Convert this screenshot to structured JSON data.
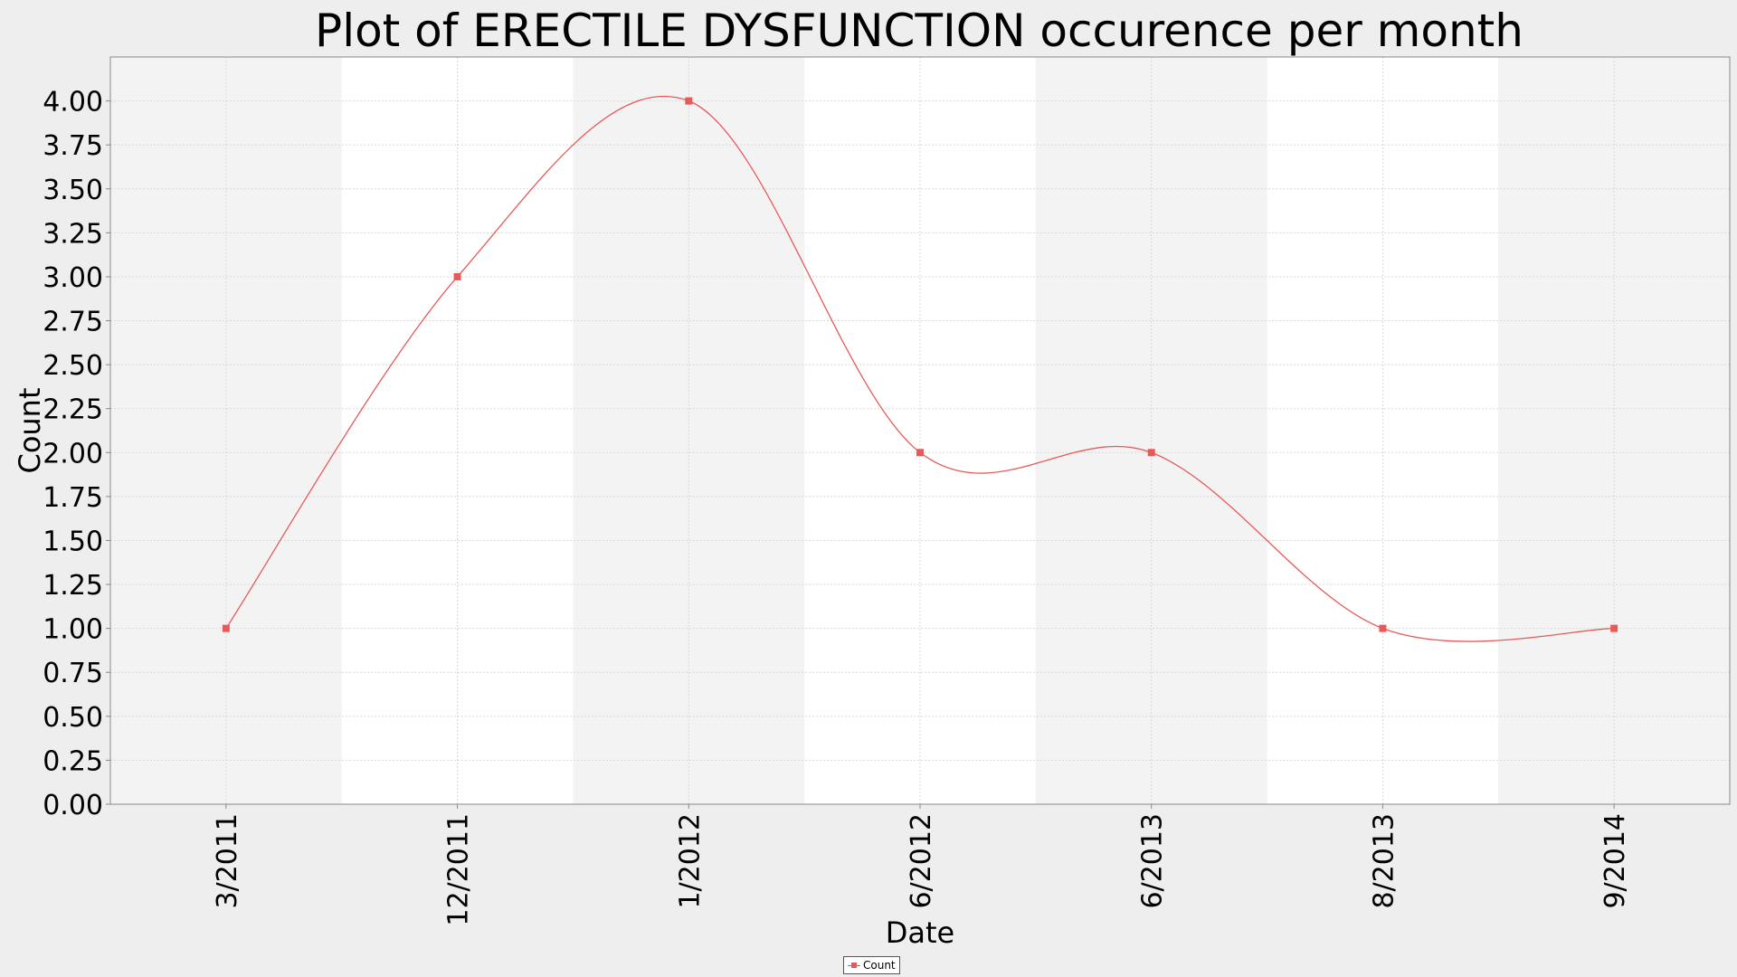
{
  "chart_data": {
    "type": "line",
    "title": "Plot of ERECTILE DYSFUNCTION occurence per month",
    "xlabel": "Date",
    "ylabel": "Count",
    "categories": [
      "3/2011",
      "12/2011",
      "1/2012",
      "6/2012",
      "6/2013",
      "8/2013",
      "9/2014"
    ],
    "series": [
      {
        "name": "Count",
        "values": [
          1,
          3,
          4,
          2,
          2,
          1,
          1
        ],
        "color": "#e85a5a"
      }
    ],
    "ylim": [
      0,
      4.25
    ],
    "yticks": [
      "0.00",
      "0.25",
      "0.50",
      "0.75",
      "1.00",
      "1.25",
      "1.50",
      "1.75",
      "2.00",
      "2.25",
      "2.50",
      "2.75",
      "3.00",
      "3.25",
      "3.50",
      "3.75",
      "4.00"
    ],
    "curve": "smoothed spline",
    "grid": true,
    "legend": "bottom-center",
    "band_colors": [
      "#f3f3f3",
      "#ffffff"
    ]
  }
}
